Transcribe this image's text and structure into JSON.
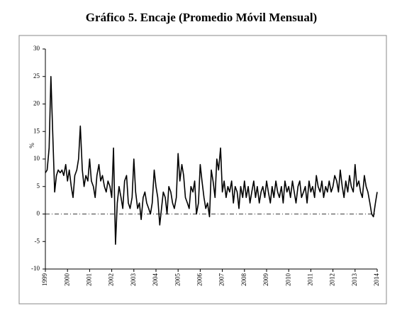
{
  "chart_data": {
    "type": "line",
    "title": "Gráfico 5. Encaje (Promedio Móvil Mensual)",
    "y_label": "%",
    "x": [
      1999.0,
      1999.08,
      1999.17,
      1999.25,
      1999.33,
      1999.42,
      1999.5,
      1999.58,
      1999.67,
      1999.75,
      1999.83,
      1999.92,
      2000.0,
      2000.08,
      2000.17,
      2000.25,
      2000.33,
      2000.42,
      2000.5,
      2000.58,
      2000.67,
      2000.75,
      2000.83,
      2000.92,
      2001.0,
      2001.08,
      2001.17,
      2001.25,
      2001.33,
      2001.42,
      2001.5,
      2001.58,
      2001.67,
      2001.75,
      2001.83,
      2001.92,
      2002.0,
      2002.08,
      2002.17,
      2002.25,
      2002.33,
      2002.42,
      2002.5,
      2002.58,
      2002.67,
      2002.75,
      2002.83,
      2002.92,
      2003.0,
      2003.08,
      2003.17,
      2003.25,
      2003.33,
      2003.42,
      2003.5,
      2003.58,
      2003.67,
      2003.75,
      2003.83,
      2003.92,
      2004.0,
      2004.08,
      2004.17,
      2004.25,
      2004.33,
      2004.42,
      2004.5,
      2004.58,
      2004.67,
      2004.75,
      2004.83,
      2004.92,
      2005.0,
      2005.08,
      2005.17,
      2005.25,
      2005.33,
      2005.42,
      2005.5,
      2005.58,
      2005.67,
      2005.75,
      2005.83,
      2005.92,
      2006.0,
      2006.08,
      2006.17,
      2006.25,
      2006.33,
      2006.42,
      2006.5,
      2006.58,
      2006.67,
      2006.75,
      2006.83,
      2006.92,
      2007.0,
      2007.08,
      2007.17,
      2007.25,
      2007.33,
      2007.42,
      2007.5,
      2007.58,
      2007.67,
      2007.75,
      2007.83,
      2007.92,
      2008.0,
      2008.08,
      2008.17,
      2008.25,
      2008.33,
      2008.42,
      2008.5,
      2008.58,
      2008.67,
      2008.75,
      2008.83,
      2008.92,
      2009.0,
      2009.08,
      2009.17,
      2009.25,
      2009.33,
      2009.42,
      2009.5,
      2009.58,
      2009.67,
      2009.75,
      2009.83,
      2009.92,
      2010.0,
      2010.08,
      2010.17,
      2010.25,
      2010.33,
      2010.42,
      2010.5,
      2010.58,
      2010.67,
      2010.75,
      2010.83,
      2010.92,
      2011.0,
      2011.08,
      2011.17,
      2011.25,
      2011.33,
      2011.42,
      2011.5,
      2011.58,
      2011.67,
      2011.75,
      2011.83,
      2011.92,
      2012.0,
      2012.08,
      2012.17,
      2012.25,
      2012.33,
      2012.42,
      2012.5,
      2012.58,
      2012.67,
      2012.75,
      2012.83,
      2012.92,
      2013.0,
      2013.08,
      2013.17,
      2013.25,
      2013.33,
      2013.42,
      2013.5,
      2013.58,
      2013.67,
      2013.75,
      2013.83,
      2013.92,
      2014.0
    ],
    "series": [
      {
        "color": "#000000",
        "values": [
          7.5,
          8,
          12,
          25,
          15,
          4,
          7,
          8,
          7.5,
          8,
          7,
          9,
          6,
          8,
          5,
          3,
          7,
          8,
          10,
          16,
          8,
          5,
          7,
          6,
          10,
          6,
          5,
          3,
          7,
          9,
          6,
          7,
          5,
          4,
          6,
          5,
          3,
          12,
          -5.5,
          2,
          5,
          3,
          1,
          6,
          7,
          2,
          1,
          3,
          10,
          4,
          1,
          2,
          -1,
          3,
          4,
          2,
          1,
          0,
          2,
          8,
          5,
          3,
          -2,
          1,
          4,
          3,
          0,
          5,
          4,
          2,
          1,
          3,
          11,
          6,
          9,
          7,
          3,
          2,
          1,
          5,
          4,
          6,
          0,
          2,
          9,
          6,
          3,
          1,
          2,
          -0.5,
          8,
          6,
          3,
          10,
          8,
          12,
          4,
          6,
          3,
          5,
          4,
          6,
          2,
          5,
          4,
          1,
          5,
          3,
          6,
          3,
          5,
          2,
          4,
          6,
          3,
          5,
          2,
          4,
          5,
          3,
          6,
          4,
          2,
          5,
          3,
          6,
          4,
          3,
          5,
          2,
          6,
          4,
          5,
          3,
          6,
          4,
          2,
          5,
          6,
          3,
          4,
          5,
          2,
          6,
          4,
          5,
          3,
          7,
          5,
          4,
          6,
          3,
          5,
          4,
          6,
          4,
          5,
          7,
          6,
          4,
          8,
          5,
          3,
          6,
          4,
          7,
          5,
          4,
          9,
          5,
          6,
          4,
          3,
          7,
          5,
          4,
          2,
          0,
          -0.5,
          2,
          4
        ]
      }
    ],
    "xlim": [
      1999,
      2014
    ],
    "xticks": [
      1999,
      2000,
      2001,
      2002,
      2003,
      2004,
      2005,
      2006,
      2007,
      2008,
      2009,
      2010,
      2011,
      2012,
      2013,
      2014
    ],
    "ylim": [
      -10,
      30
    ],
    "yticks": [
      -10,
      -5,
      0,
      5,
      10,
      15,
      20,
      25,
      30
    ]
  }
}
